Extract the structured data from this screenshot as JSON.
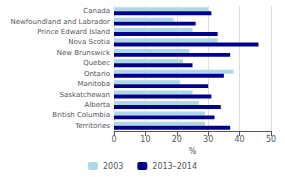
{
  "chart_data": {
    "type": "bar",
    "orientation": "horizontal",
    "categories": [
      "Canada",
      "Newfoundland and Labrador",
      "Prince Edward Island",
      "Nova Scotia",
      "New Brunswick",
      "Quebec",
      "Ontario",
      "Manitoba",
      "Saskatchewan",
      "Alberta",
      "British Columbia",
      "Territories"
    ],
    "series": [
      {
        "name": "2003",
        "color": "#add8e6",
        "values": [
          30,
          19,
          25,
          33,
          24,
          22,
          38,
          21,
          25,
          27,
          29,
          29
        ]
      },
      {
        "name": "2013–2014",
        "color": "#00008b",
        "values": [
          31,
          26,
          33,
          46,
          37,
          25,
          35,
          30,
          31,
          34,
          32,
          37
        ]
      }
    ],
    "xlabel": "%",
    "xlim": [
      0,
      50
    ],
    "xticks": [
      0,
      10,
      20,
      30,
      40,
      50
    ],
    "grid": true,
    "legend": "bottom"
  }
}
